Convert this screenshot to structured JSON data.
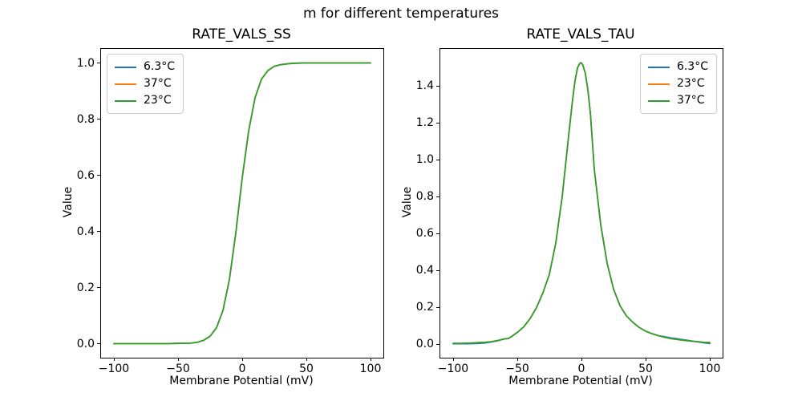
{
  "figure": {
    "suptitle": "m for different temperatures",
    "background_color": "#ffffff",
    "text_color": "#000000"
  },
  "palette": {
    "blue": "#1f77b4",
    "orange": "#ff7f0e",
    "green": "#2ca02c",
    "spine": "#000000",
    "legend_border": "#cccccc"
  },
  "chart_data": [
    {
      "type": "line",
      "title": "RATE_VALS_SS",
      "xlabel": "Membrane Potential (mV)",
      "ylabel": "Value",
      "xlim": [
        -110,
        110
      ],
      "ylim": [
        -0.05,
        1.05
      ],
      "xticks": [
        -100,
        -50,
        0,
        50,
        100
      ],
      "xtick_labels": [
        "−100",
        "−50",
        "0",
        "50",
        "100"
      ],
      "yticks": [
        0.0,
        0.2,
        0.4,
        0.6,
        0.8,
        1.0
      ],
      "ytick_labels": [
        "0.0",
        "0.2",
        "0.4",
        "0.6",
        "0.8",
        "1.0"
      ],
      "grid": false,
      "legend_position": "upper left",
      "x": [
        -100,
        -90,
        -80,
        -70,
        -60,
        -50,
        -45,
        -40,
        -35,
        -30,
        -25,
        -20,
        -15,
        -10,
        -5,
        0,
        5,
        10,
        15,
        20,
        25,
        30,
        35,
        40,
        50,
        60,
        70,
        80,
        90,
        100
      ],
      "series": [
        {
          "name": "6.3°C",
          "color": "#1f77b4",
          "values": [
            0,
            0,
            0,
            0,
            0,
            0.001,
            0.001,
            0.002,
            0.005,
            0.012,
            0.027,
            0.057,
            0.118,
            0.228,
            0.394,
            0.59,
            0.757,
            0.876,
            0.942,
            0.973,
            0.988,
            0.994,
            0.997,
            0.999,
            1,
            1,
            1,
            1,
            1,
            1
          ]
        },
        {
          "name": "37°C",
          "color": "#ff7f0e",
          "values": [
            0,
            0,
            0,
            0,
            0,
            0.001,
            0.001,
            0.002,
            0.005,
            0.012,
            0.027,
            0.057,
            0.118,
            0.228,
            0.394,
            0.59,
            0.757,
            0.876,
            0.942,
            0.973,
            0.988,
            0.994,
            0.997,
            0.999,
            1,
            1,
            1,
            1,
            1,
            1
          ]
        },
        {
          "name": "23°C",
          "color": "#2ca02c",
          "values": [
            0,
            0,
            0,
            0,
            0,
            0.001,
            0.001,
            0.002,
            0.005,
            0.012,
            0.027,
            0.057,
            0.118,
            0.228,
            0.394,
            0.59,
            0.757,
            0.876,
            0.942,
            0.973,
            0.988,
            0.994,
            0.997,
            0.999,
            1,
            1,
            1,
            1,
            1,
            1
          ]
        }
      ]
    },
    {
      "type": "line",
      "title": "RATE_VALS_TAU",
      "xlabel": "Membrane Potential (mV)",
      "ylabel": "Value",
      "xlim": [
        -110,
        110
      ],
      "ylim": [
        -0.072,
        1.601
      ],
      "xticks": [
        -100,
        -50,
        0,
        50,
        100
      ],
      "xtick_labels": [
        "−100",
        "−50",
        "0",
        "50",
        "100"
      ],
      "yticks": [
        0.0,
        0.2,
        0.4,
        0.6,
        0.8,
        1.0,
        1.2,
        1.4
      ],
      "ytick_labels": [
        "0.0",
        "0.2",
        "0.4",
        "0.6",
        "0.8",
        "1.0",
        "1.2",
        "1.4"
      ],
      "grid": false,
      "legend_position": "upper right",
      "x": [
        -100,
        -95,
        -90,
        -85,
        -80,
        -75,
        -70,
        -65,
        -60,
        -57,
        -55,
        -50,
        -45,
        -40,
        -35,
        -30,
        -25,
        -20,
        -15,
        -10,
        -7,
        -5,
        -3,
        -1,
        0,
        1,
        3,
        5,
        7,
        10,
        15,
        20,
        25,
        30,
        35,
        40,
        45,
        50,
        55,
        60,
        65,
        70,
        75,
        80,
        85,
        90,
        95,
        100
      ],
      "series": [
        {
          "name": "6.3°C",
          "color": "#1f77b4",
          "values": [
            0.003,
            0.003,
            0.003,
            0.004,
            0.005,
            0.008,
            0.013,
            0.02,
            0.03,
            0.032,
            0.04,
            0.065,
            0.095,
            0.14,
            0.2,
            0.28,
            0.38,
            0.55,
            0.8,
            1.13,
            1.32,
            1.43,
            1.5,
            1.525,
            1.525,
            1.515,
            1.47,
            1.38,
            1.25,
            0.95,
            0.65,
            0.44,
            0.3,
            0.21,
            0.155,
            0.12,
            0.092,
            0.072,
            0.058,
            0.047,
            0.042,
            0.035,
            0.03,
            0.025,
            0.02,
            0.014,
            0.009,
            0.005
          ]
        },
        {
          "name": "23°C",
          "color": "#ff7f0e",
          "values": [
            0.006,
            0.006,
            0.007,
            0.008,
            0.01,
            0.012,
            0.015,
            0.022,
            0.03,
            0.032,
            0.04,
            0.065,
            0.095,
            0.14,
            0.2,
            0.28,
            0.38,
            0.55,
            0.8,
            1.13,
            1.32,
            1.43,
            1.5,
            1.525,
            1.525,
            1.515,
            1.47,
            1.38,
            1.25,
            0.95,
            0.65,
            0.44,
            0.3,
            0.21,
            0.155,
            0.12,
            0.092,
            0.072,
            0.058,
            0.047,
            0.038,
            0.031,
            0.026,
            0.022,
            0.018,
            0.015,
            0.012,
            0.01
          ]
        },
        {
          "name": "37°C",
          "color": "#2ca02c",
          "values": [
            0.006,
            0.006,
            0.007,
            0.008,
            0.01,
            0.012,
            0.015,
            0.022,
            0.03,
            0.032,
            0.04,
            0.065,
            0.095,
            0.14,
            0.2,
            0.28,
            0.38,
            0.55,
            0.8,
            1.13,
            1.32,
            1.43,
            1.5,
            1.525,
            1.525,
            1.515,
            1.47,
            1.38,
            1.25,
            0.95,
            0.65,
            0.44,
            0.3,
            0.21,
            0.155,
            0.12,
            0.092,
            0.072,
            0.058,
            0.047,
            0.038,
            0.031,
            0.026,
            0.022,
            0.018,
            0.015,
            0.012,
            0.01
          ]
        }
      ]
    }
  ]
}
